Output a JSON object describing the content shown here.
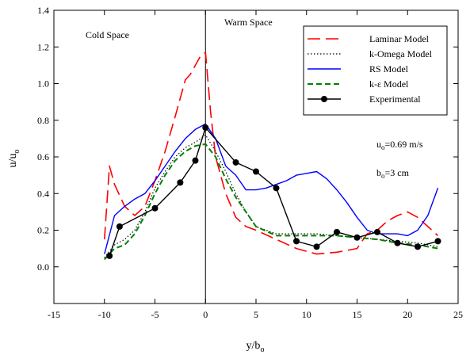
{
  "chart_data": {
    "type": "line",
    "xlabel_main": "y/b",
    "xlabel_sub": "o",
    "ylabel_main": "u/u",
    "ylabel_sub": "o",
    "xlim": [
      -15,
      25
    ],
    "ylim": [
      -0.2,
      1.4
    ],
    "xticks": [
      -15,
      -10,
      -5,
      0,
      5,
      10,
      15,
      20,
      25
    ],
    "yticks": [
      0.0,
      0.2,
      0.4,
      0.6,
      0.8,
      1.0,
      1.2,
      1.4
    ],
    "xtick_labels": [
      "-15",
      "-10",
      "-5",
      "0",
      "5",
      "10",
      "15",
      "20",
      "25"
    ],
    "ytick_labels": [
      "0.0",
      "0.2",
      "0.4",
      "0.6",
      "0.8",
      "1.0",
      "1.2",
      "1.4"
    ],
    "grid": false,
    "legend_position": "top-right",
    "divider_x": 0,
    "annotations": {
      "cold_space": "Cold Space",
      "warm_space": "Warm Space",
      "uo_main": "u",
      "uo_sub": "o",
      "uo_value": "=0.69 m/s",
      "bo_main": "b",
      "bo_sub": "o",
      "bo_value": "=3 cm"
    },
    "series": [
      {
        "name": "Laminar Model",
        "color": "#ff0000",
        "style": "long-dash",
        "x": [
          -10,
          -9.5,
          -9,
          -8,
          -7,
          -6,
          -5,
          -4,
          -3,
          -2,
          -1.5,
          -1,
          -0.5,
          0,
          0.5,
          1,
          2,
          3,
          4,
          5,
          7,
          9,
          11,
          13,
          15,
          16,
          17,
          18,
          19,
          20,
          21,
          22,
          23
        ],
        "y": [
          0.15,
          0.55,
          0.45,
          0.33,
          0.28,
          0.33,
          0.47,
          0.63,
          0.82,
          1.02,
          1.05,
          1.1,
          1.15,
          1.17,
          0.85,
          0.6,
          0.4,
          0.27,
          0.22,
          0.2,
          0.15,
          0.1,
          0.07,
          0.08,
          0.1,
          0.18,
          0.2,
          0.25,
          0.28,
          0.3,
          0.27,
          0.22,
          0.17
        ]
      },
      {
        "name": "k-Omega Model",
        "color": "#000000",
        "style": "dotted",
        "x": [
          -10,
          -9,
          -8,
          -7,
          -6,
          -5,
          -4,
          -3,
          -2,
          -1,
          0,
          1,
          2,
          3,
          4,
          5,
          7,
          9,
          11,
          13,
          15,
          17,
          19,
          21,
          23
        ],
        "y": [
          0.05,
          0.12,
          0.15,
          0.2,
          0.3,
          0.43,
          0.52,
          0.6,
          0.65,
          0.68,
          0.72,
          0.63,
          0.52,
          0.4,
          0.3,
          0.22,
          0.18,
          0.18,
          0.18,
          0.17,
          0.16,
          0.15,
          0.14,
          0.13,
          0.11
        ]
      },
      {
        "name": "RS Model",
        "color": "#0000ff",
        "style": "solid",
        "x": [
          -10,
          -9,
          -8,
          -7,
          -6,
          -5,
          -4,
          -3,
          -2,
          -1,
          0,
          1,
          2,
          3,
          4,
          5,
          6,
          7,
          8,
          9,
          10,
          11,
          12,
          13,
          14,
          15,
          16,
          17,
          18,
          19,
          20,
          21,
          22,
          23
        ],
        "y": [
          0.07,
          0.28,
          0.33,
          0.37,
          0.4,
          0.47,
          0.55,
          0.63,
          0.7,
          0.75,
          0.78,
          0.7,
          0.55,
          0.5,
          0.42,
          0.42,
          0.43,
          0.45,
          0.47,
          0.5,
          0.51,
          0.52,
          0.48,
          0.42,
          0.35,
          0.27,
          0.2,
          0.18,
          0.18,
          0.18,
          0.17,
          0.2,
          0.28,
          0.43
        ]
      },
      {
        "name": "k-ε Model",
        "color": "#008000",
        "style": "dashed",
        "x": [
          -10,
          -9,
          -8,
          -7,
          -6,
          -5,
          -4,
          -3,
          -2,
          -1,
          0,
          1,
          2,
          3,
          4,
          5,
          7,
          9,
          11,
          13,
          15,
          17,
          19,
          21,
          23
        ],
        "y": [
          0.04,
          0.1,
          0.12,
          0.18,
          0.28,
          0.4,
          0.5,
          0.58,
          0.63,
          0.66,
          0.67,
          0.6,
          0.48,
          0.38,
          0.3,
          0.22,
          0.17,
          0.17,
          0.17,
          0.17,
          0.16,
          0.15,
          0.13,
          0.12,
          0.1
        ]
      },
      {
        "name": "Experimental",
        "color": "#000000",
        "style": "solid-markers",
        "x": [
          -9.5,
          -8.5,
          -5,
          -2.5,
          -1,
          0,
          3,
          5,
          7,
          9,
          11,
          13,
          15,
          17,
          19,
          21,
          23
        ],
        "y": [
          0.06,
          0.22,
          0.32,
          0.46,
          0.58,
          0.76,
          0.57,
          0.52,
          0.43,
          0.14,
          0.11,
          0.19,
          0.16,
          0.19,
          0.13,
          0.11,
          0.14
        ]
      }
    ]
  }
}
